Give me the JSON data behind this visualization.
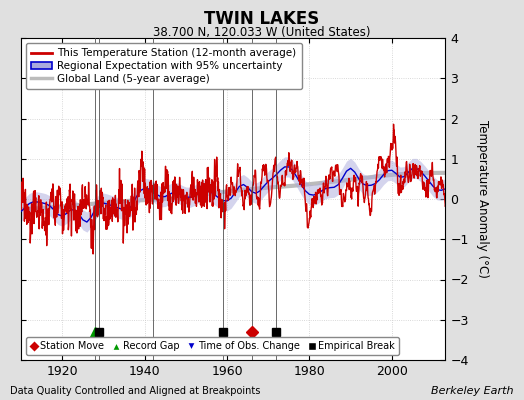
{
  "title": "TWIN LAKES",
  "subtitle": "38.700 N, 120.033 W (United States)",
  "ylabel": "Temperature Anomaly (°C)",
  "xlabel_note": "Data Quality Controlled and Aligned at Breakpoints",
  "credit": "Berkeley Earth",
  "ylim": [
    -4,
    4
  ],
  "xlim": [
    1910,
    2013
  ],
  "xticks": [
    1920,
    1940,
    1960,
    1980,
    2000
  ],
  "yticks": [
    -4,
    -3,
    -2,
    -1,
    0,
    1,
    2,
    3,
    4
  ],
  "bg_color": "#e0e0e0",
  "plot_bg_color": "#ffffff",
  "station_line_color": "#cc0000",
  "regional_line_color": "#0000cc",
  "regional_fill_color": "#aaaadd",
  "global_line_color": "#bbbbbb",
  "legend_labels": [
    "This Temperature Station (12-month average)",
    "Regional Expectation with 95% uncertainty",
    "Global Land (5-year average)"
  ],
  "event_markers": {
    "station_move": {
      "year": 1966,
      "color": "#cc0000",
      "marker": "D",
      "label": "Station Move"
    },
    "record_gap": {
      "year": 1928,
      "color": "#009900",
      "marker": "^",
      "label": "Record Gap"
    },
    "time_obs": {
      "year": 1959,
      "color": "#0000cc",
      "marker": "v",
      "label": "Time of Obs. Change"
    },
    "empirical_breaks": [
      {
        "year": 1929
      },
      {
        "year": 1959
      },
      {
        "year": 1972
      }
    ]
  },
  "vertical_lines": [
    1928,
    1929,
    1942,
    1959,
    1966,
    1972
  ],
  "seed": 12345
}
